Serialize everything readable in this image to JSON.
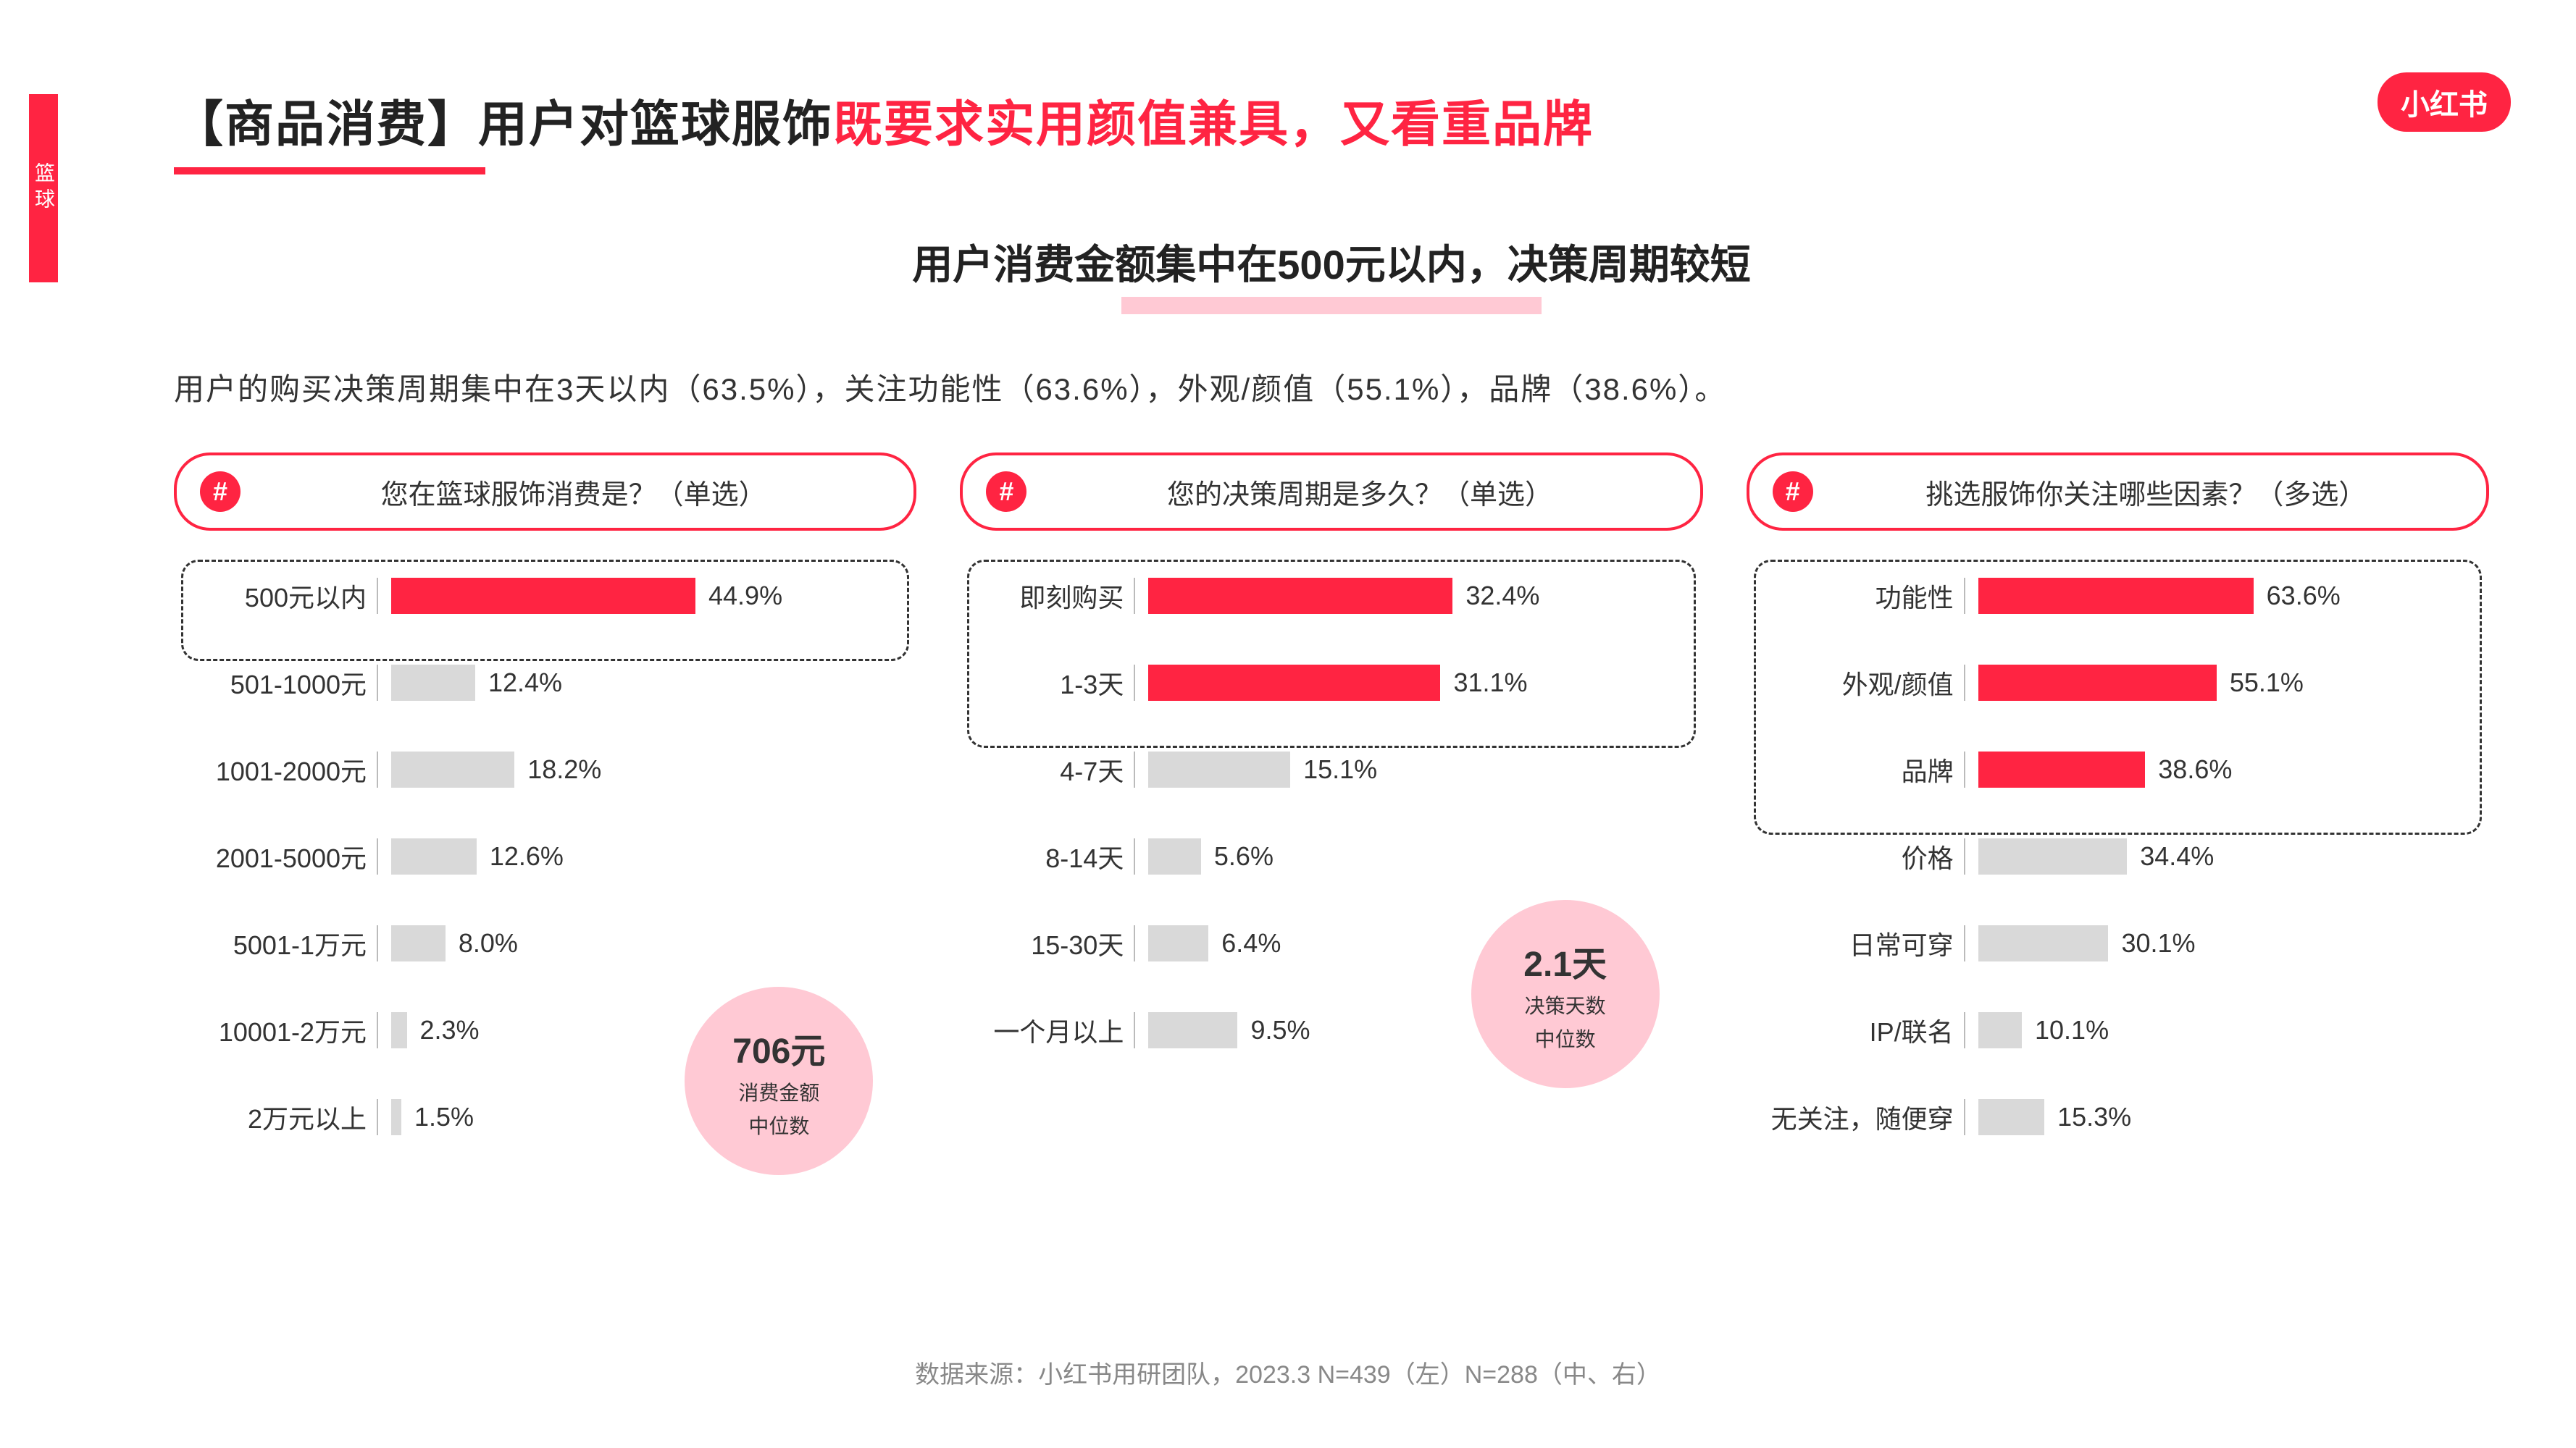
{
  "side_tag": "篮球",
  "logo": "小红书",
  "title_black": "【商品消费】用户对篮球服饰",
  "title_red": "既要求实用颜值兼具，又看重品牌",
  "subtitle": "用户消费金额集中在500元以内，决策周期较短",
  "summary": "用户的购买决策周期集中在3天以内（63.5%），关注功能性（63.6%），外观/颜值（55.1%），品牌（38.6%）。",
  "colors": {
    "accent": "#ff2442",
    "accent_light": "#ffc9d4",
    "bar_gray": "#d9d9d9",
    "text": "#333333",
    "muted": "#888888"
  },
  "chart_left": {
    "title": "您在篮球服饰消费是？（单选）",
    "bars": [
      {
        "label": "500元以内",
        "value": 44.9,
        "highlight": true
      },
      {
        "label": "501-1000元",
        "value": 12.4,
        "highlight": false
      },
      {
        "label": "1001-2000元",
        "value": 18.2,
        "highlight": false
      },
      {
        "label": "2001-5000元",
        "value": 12.6,
        "highlight": false
      },
      {
        "label": "5001-1万元",
        "value": 8.0,
        "highlight": false
      },
      {
        "label": "10001-2万元",
        "value": 2.3,
        "highlight": false
      },
      {
        "label": "2万元以上",
        "value": 1.5,
        "highlight": false
      }
    ],
    "max": 44.9,
    "median_big": "706元",
    "median_line1": "消费金额",
    "median_line2": "中位数",
    "dashed_rows": 1
  },
  "chart_mid": {
    "title": "您的决策周期是多久？（单选）",
    "bars": [
      {
        "label": "即刻购买",
        "value": 32.4,
        "highlight": true
      },
      {
        "label": "1-3天",
        "value": 31.1,
        "highlight": true
      },
      {
        "label": "4-7天",
        "value": 15.1,
        "highlight": false
      },
      {
        "label": "8-14天",
        "value": 5.6,
        "highlight": false
      },
      {
        "label": "15-30天",
        "value": 6.4,
        "highlight": false
      },
      {
        "label": "一个月以上",
        "value": 9.5,
        "highlight": false
      }
    ],
    "max": 32.4,
    "median_big": "2.1天",
    "median_line1": "决策天数",
    "median_line2": "中位数",
    "dashed_rows": 2
  },
  "chart_right": {
    "title": "挑选服饰你关注哪些因素？（多选）",
    "bars": [
      {
        "label": "功能性",
        "value": 63.6,
        "highlight": true
      },
      {
        "label": "外观/颜值",
        "value": 55.1,
        "highlight": true
      },
      {
        "label": "品牌",
        "value": 38.6,
        "highlight": true
      },
      {
        "label": "价格",
        "value": 34.4,
        "highlight": false
      },
      {
        "label": "日常可穿",
        "value": 30.1,
        "highlight": false
      },
      {
        "label": "IP/联名",
        "value": 10.1,
        "highlight": false
      },
      {
        "label": "无关注，随便穿",
        "value": 15.3,
        "highlight": false
      }
    ],
    "max": 63.6,
    "dashed_rows": 3
  },
  "footer": "数据来源：小红书用研团队，2023.3 N=439（左）N=288（中、右）"
}
